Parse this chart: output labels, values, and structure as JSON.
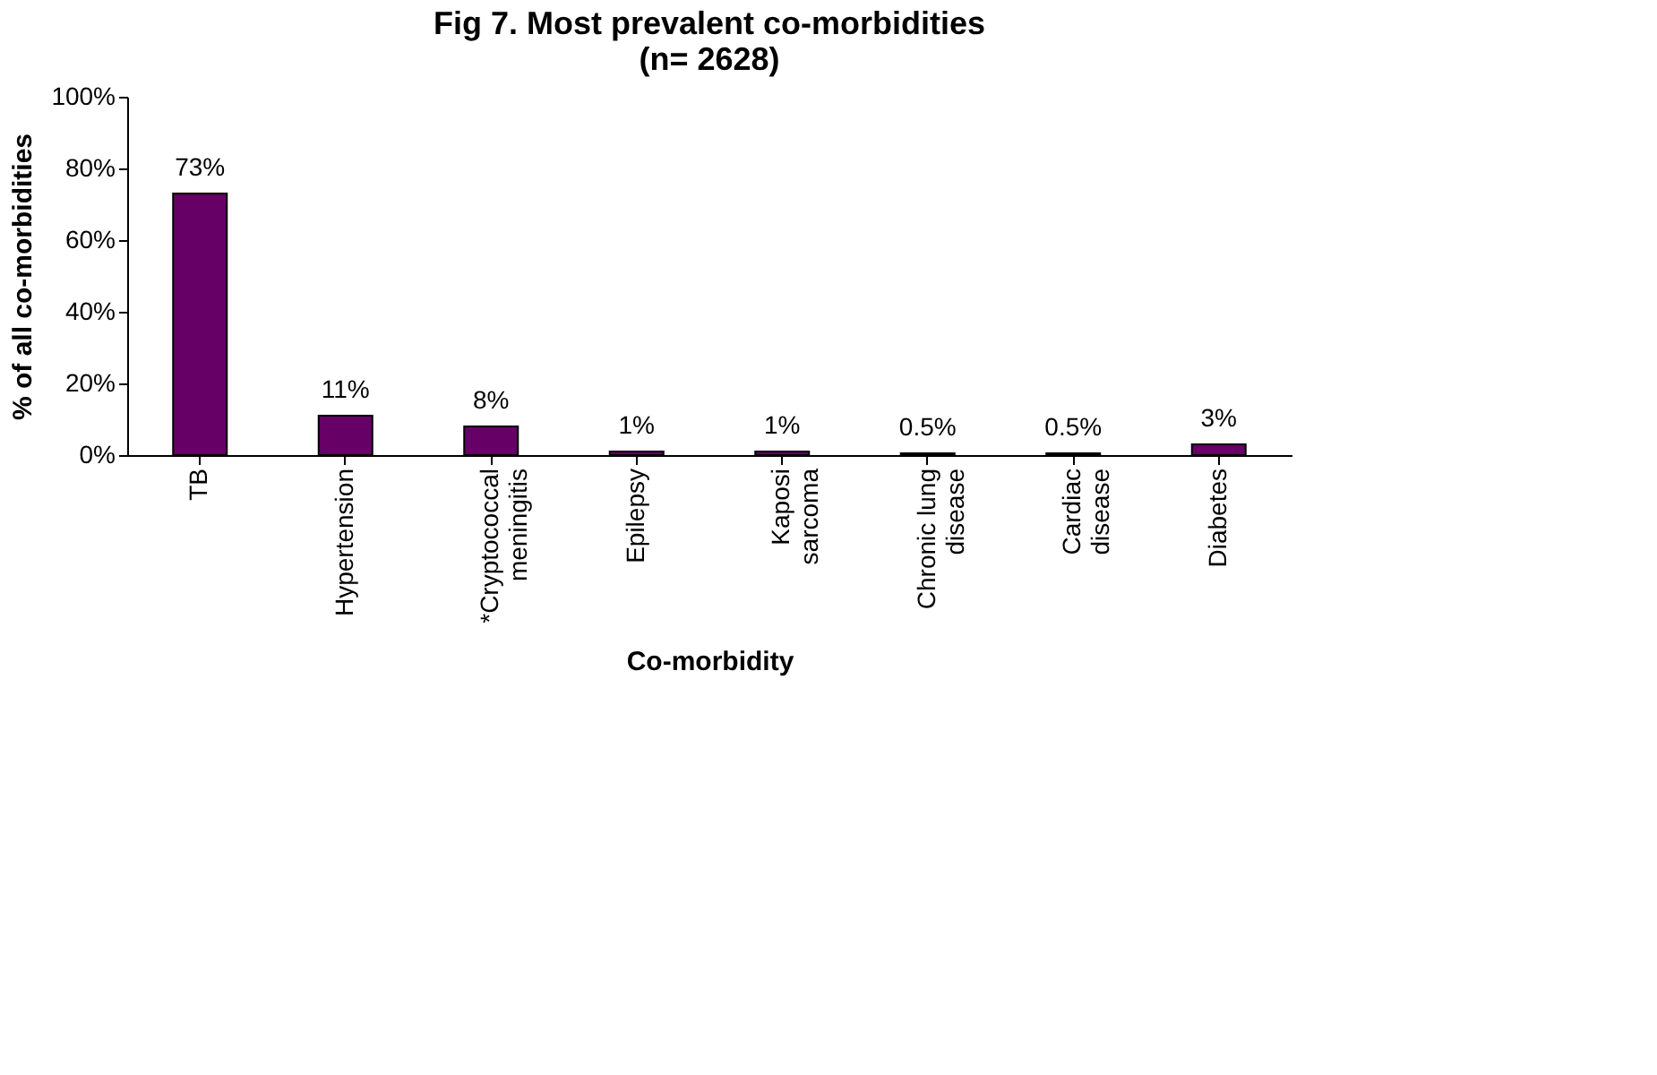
{
  "chart_data": {
    "type": "bar",
    "title": "Fig 7. Most prevalent co-morbidities (n= 2628)",
    "xlabel": "Co-morbidity",
    "ylabel": "% of all co-morbidities",
    "categories": [
      "TB",
      "Hypertension",
      "*Cryptococcal meningitis",
      "Epilepsy",
      "Kaposi sarcoma",
      "Chronic lung disease",
      "Cardiac disease",
      "Diabetes"
    ],
    "values": [
      73,
      11,
      8,
      1,
      1,
      0.5,
      0.5,
      3
    ],
    "value_labels": [
      "73%",
      "11%",
      "8%",
      "1%",
      "1%",
      "0.5%",
      "0.5%",
      "3%"
    ],
    "color": "#660066",
    "ylim": [
      0,
      100
    ],
    "yticks": [
      {
        "value": 0,
        "label": "0%"
      },
      {
        "value": 20,
        "label": "20%"
      },
      {
        "value": 40,
        "label": "40%"
      },
      {
        "value": 60,
        "label": "60%"
      },
      {
        "value": 80,
        "label": "80%"
      },
      {
        "value": 100,
        "label": "100%"
      }
    ],
    "grid": false
  }
}
